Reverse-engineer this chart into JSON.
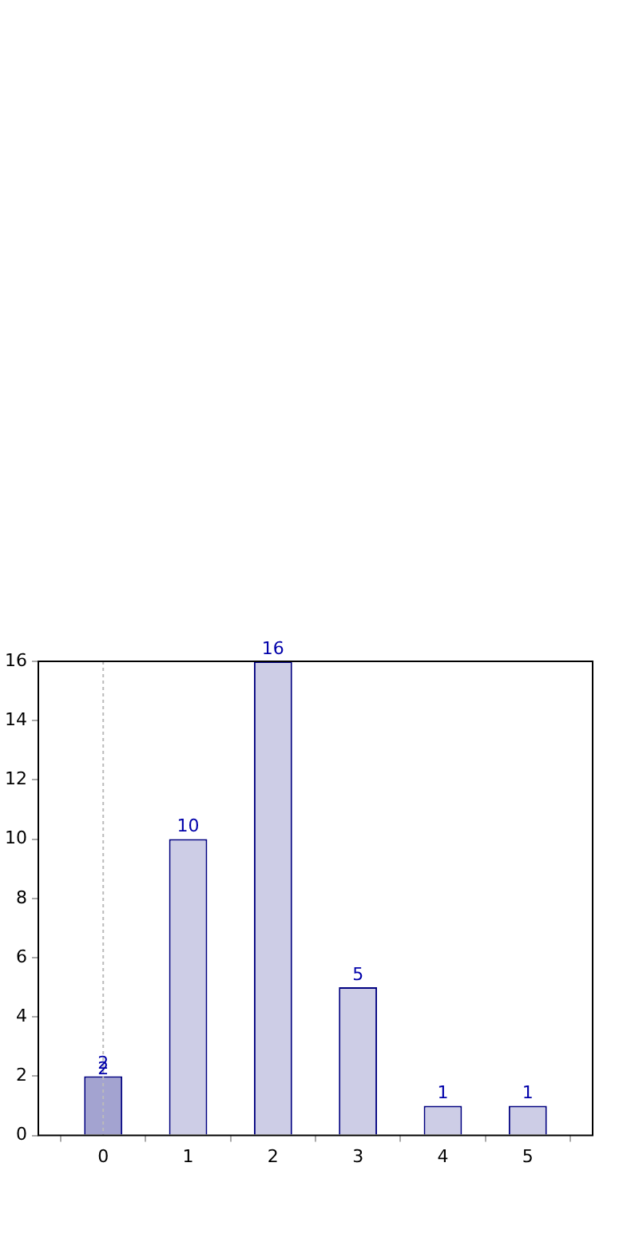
{
  "chart_data": {
    "type": "bar",
    "x": [
      0,
      1,
      2,
      3,
      4,
      5
    ],
    "values": [
      2,
      10,
      16,
      5,
      1,
      1
    ],
    "colors": [
      "#a3a3d0",
      "#cdcde6",
      "#cdcde6",
      "#cdcde6",
      "#cdcde6",
      "#cdcde6"
    ],
    "xlim": [
      -0.22,
      5.22
    ],
    "xticks": [
      0,
      1,
      2,
      3,
      4,
      5
    ],
    "ylim": [
      0,
      16
    ],
    "yticks": [
      0,
      2,
      4,
      6,
      8,
      10,
      12,
      14,
      16
    ],
    "data_labels": true,
    "legend": false,
    "ref_lines": [
      {
        "axis": "x",
        "value": 0,
        "color": "#bbbbbb",
        "line_style": "dotted"
      }
    ],
    "annotations": [
      {
        "text": "2",
        "x": 0,
        "y": 2
      }
    ]
  }
}
